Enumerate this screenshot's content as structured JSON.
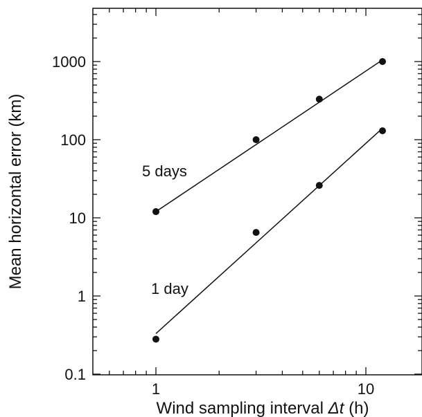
{
  "chart_data": {
    "type": "scatter",
    "xscale": "log",
    "yscale": "log",
    "xlim": [
      0.5,
      20
    ],
    "ylim": [
      0.1,
      5000
    ],
    "xticks_major": [
      1,
      10
    ],
    "xtick_labels": [
      "1",
      "10"
    ],
    "yticks_major": [
      0.1,
      1,
      10,
      100,
      1000
    ],
    "ytick_labels": [
      "0.1",
      "1",
      "10",
      "100",
      "1000"
    ],
    "xlabel_prefix": "Wind sampling interval ",
    "xlabel_symbol": "Δt",
    "xlabel_suffix": " (h)",
    "ylabel": "Mean horizontal error (km)",
    "grid": false,
    "legend": "none",
    "series": [
      {
        "name": "5 days",
        "points": [
          [
            1,
            12
          ],
          [
            3,
            100
          ],
          [
            6,
            330
          ],
          [
            12,
            1000
          ]
        ],
        "fit_line": [
          [
            1,
            12
          ],
          [
            12,
            1050
          ]
        ]
      },
      {
        "name": "1 day",
        "points": [
          [
            1,
            0.28
          ],
          [
            3,
            6.5
          ],
          [
            6,
            26
          ],
          [
            12,
            130
          ]
        ],
        "fit_line": [
          [
            1,
            0.33
          ],
          [
            12,
            140
          ]
        ]
      }
    ]
  }
}
